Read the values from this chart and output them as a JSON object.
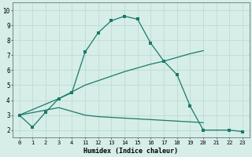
{
  "xlabel": "Humidex (Indice chaleur)",
  "bg_color": "#d6ede8",
  "grid_color": "#b8d8d0",
  "line_color": "#1a7a6a",
  "spine_color": "#607878",
  "xlim": [
    -0.5,
    17.5
  ],
  "ylim": [
    1.5,
    10.5
  ],
  "xtick_labels": [
    "0",
    "1",
    "2",
    "3",
    "4",
    "11",
    "12",
    "13",
    "14",
    "15",
    "16",
    "17",
    "18",
    "19",
    "20",
    "21",
    "22",
    "23"
  ],
  "ytick_labels": [
    "2",
    "3",
    "4",
    "5",
    "6",
    "7",
    "8",
    "9",
    "10"
  ],
  "line1_x": [
    0,
    1,
    2,
    3,
    4,
    5,
    6,
    7,
    8,
    9,
    10,
    11,
    12,
    13,
    14,
    16,
    17
  ],
  "line1_y": [
    3.0,
    2.2,
    3.2,
    4.1,
    4.5,
    7.2,
    8.5,
    9.3,
    9.6,
    9.4,
    7.8,
    6.6,
    5.7,
    3.6,
    2.0,
    2.0,
    1.9
  ],
  "line2_x": [
    0,
    3,
    5,
    6,
    7,
    8,
    9,
    10,
    11,
    12,
    13,
    14
  ],
  "line2_y": [
    3.0,
    4.1,
    5.0,
    5.3,
    5.6,
    5.9,
    6.15,
    6.4,
    6.6,
    6.85,
    7.1,
    7.3
  ],
  "line3_x": [
    0,
    3,
    5,
    6,
    7,
    8,
    9,
    10,
    11,
    12,
    13,
    14
  ],
  "line3_y": [
    3.0,
    3.5,
    3.0,
    2.9,
    2.85,
    2.8,
    2.75,
    2.7,
    2.65,
    2.6,
    2.55,
    2.5
  ],
  "xlabel_fontsize": 6.0,
  "tick_fontsize": 5.0,
  "lw": 0.9,
  "ms": 2.2
}
